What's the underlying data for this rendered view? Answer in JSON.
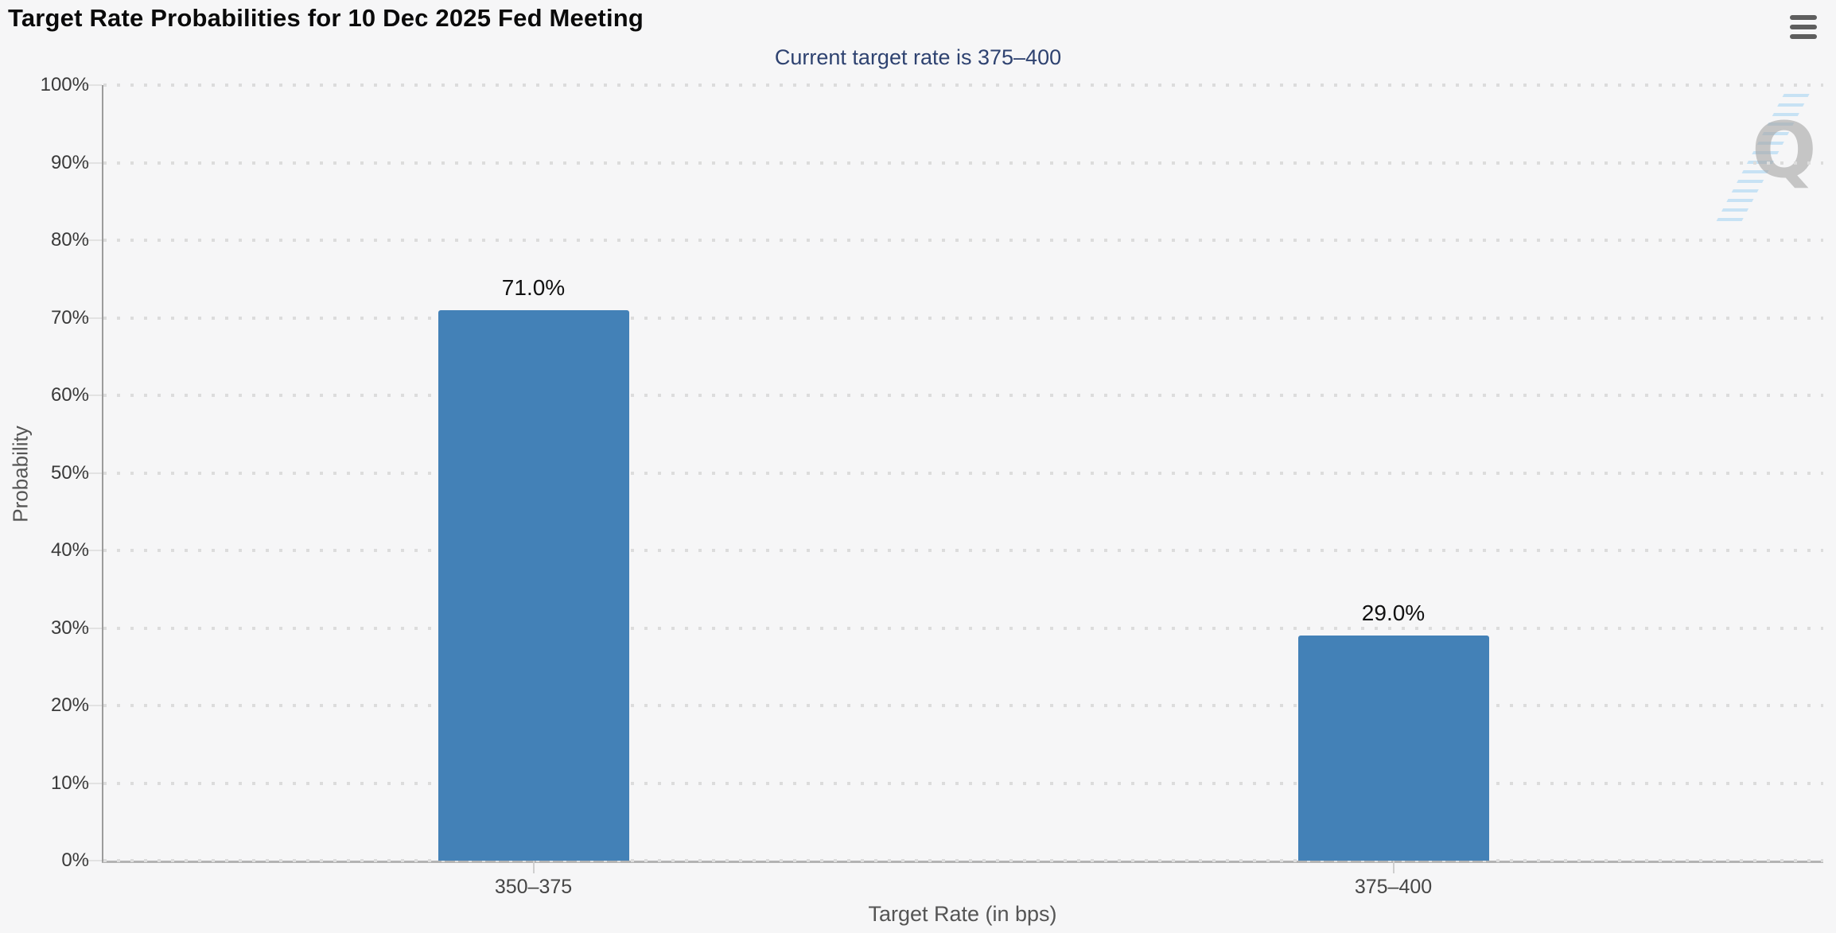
{
  "chart_data": {
    "type": "bar",
    "title": "Target Rate Probabilities for 10 Dec 2025 Fed Meeting",
    "subtitle": "Current target rate is 375–400",
    "categories": [
      "350–375",
      "375–400"
    ],
    "values": [
      71.0,
      29.0
    ],
    "value_labels": [
      "71.0%",
      "29.0%"
    ],
    "xlabel": "Target Rate (in bps)",
    "ylabel": "Probability",
    "ylim": [
      0,
      100
    ],
    "ytick_step": 10,
    "ytick_suffix": "%",
    "bar_color": "#4381b7",
    "grid": "horizontal-dotted",
    "legend": "none",
    "background_color": "#f6f6f7",
    "subtitle_color": "#2e4270"
  },
  "menu": {
    "icon": "hamburger-menu-icon"
  },
  "watermark": {
    "letter": "Q"
  }
}
